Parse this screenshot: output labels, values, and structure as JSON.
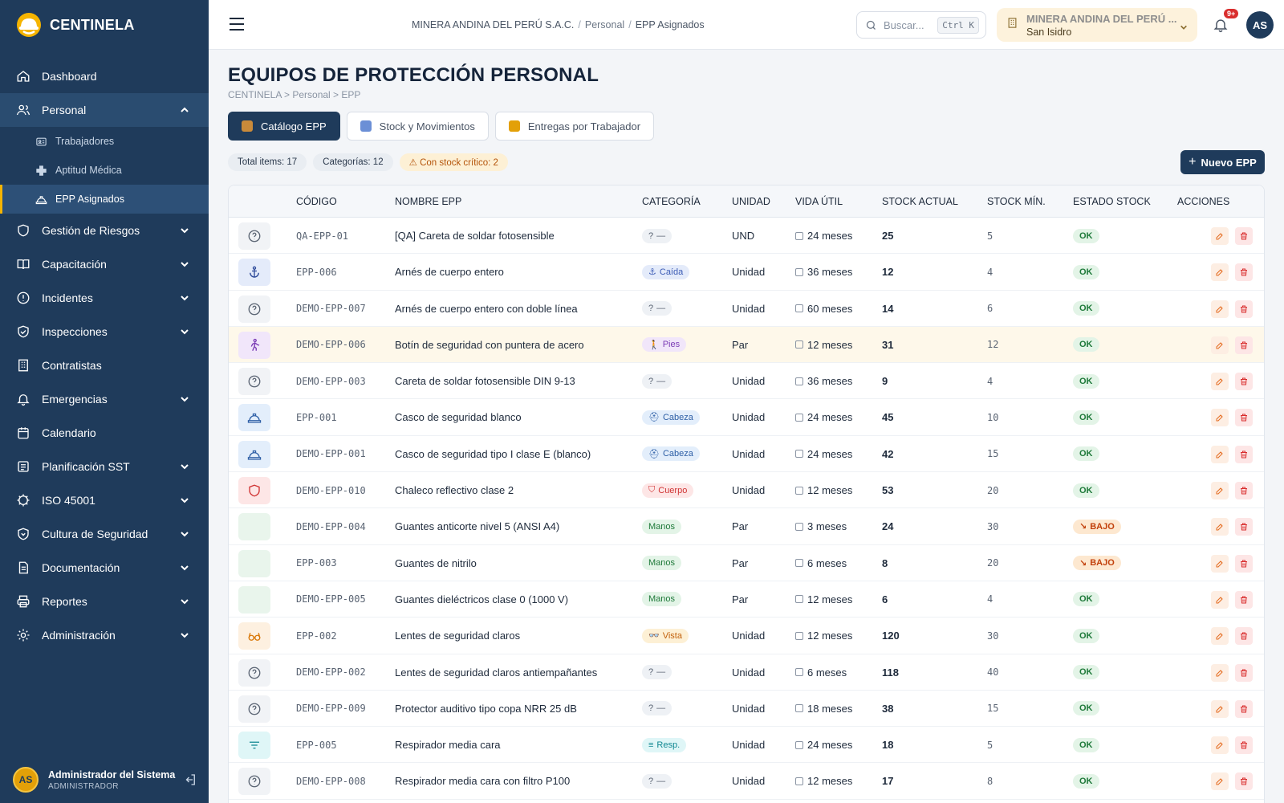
{
  "app": {
    "name": "CENTINELA"
  },
  "sidebar": {
    "items": [
      {
        "label": "Dashboard",
        "icon": "home-icon",
        "has_chevron": false
      },
      {
        "label": "Personal",
        "icon": "users-icon",
        "has_chevron": true,
        "open": true
      },
      {
        "label": "Gestión de Riesgos",
        "icon": "shield-icon",
        "has_chevron": true
      },
      {
        "label": "Capacitación",
        "icon": "book-icon",
        "has_chevron": true
      },
      {
        "label": "Incidentes",
        "icon": "alert-circle-icon",
        "has_chevron": true
      },
      {
        "label": "Inspecciones",
        "icon": "shield-check-icon",
        "has_chevron": true
      },
      {
        "label": "Contratistas",
        "icon": "building-icon",
        "has_chevron": false
      },
      {
        "label": "Emergencias",
        "icon": "bell-icon",
        "has_chevron": true
      },
      {
        "label": "Calendario",
        "icon": "calendar-icon",
        "has_chevron": false
      },
      {
        "label": "Planificación SST",
        "icon": "list-icon",
        "has_chevron": true
      },
      {
        "label": "ISO 45001",
        "icon": "badge-icon",
        "has_chevron": true
      },
      {
        "label": "Cultura de Seguridad",
        "icon": "shield-heart-icon",
        "has_chevron": true
      },
      {
        "label": "Documentación",
        "icon": "document-icon",
        "has_chevron": true
      },
      {
        "label": "Reportes",
        "icon": "printer-icon",
        "has_chevron": true
      },
      {
        "label": "Administración",
        "icon": "gear-icon",
        "has_chevron": true
      }
    ],
    "sub_items": [
      {
        "label": "Trabajadores",
        "icon": "id-card-icon"
      },
      {
        "label": "Aptitud Médica",
        "icon": "medical-cross-icon"
      },
      {
        "label": "EPP Asignados",
        "icon": "hardhat-icon",
        "active": true
      }
    ],
    "user": {
      "initials": "AS",
      "name": "Administrador del Sistema",
      "role": "ADMINISTRADOR"
    }
  },
  "topbar": {
    "breadcrumb": [
      "MINERA ANDINA DEL PERÚ S.A.C.",
      "Personal",
      "EPP Asignados"
    ],
    "search_placeholder": "Buscar...",
    "search_shortcut": "Ctrl K",
    "company_name": "MINERA ANDINA DEL PERÚ ...",
    "company_site": "San Isidro",
    "notifications_badge": "9+",
    "user_initials": "AS"
  },
  "page": {
    "title": "EQUIPOS DE PROTECCIÓN PERSONAL",
    "breadcrumb": "CENTINELA > Personal > EPP",
    "tabs": [
      {
        "label": "Catálogo EPP",
        "active": true,
        "icon_color": "#c98a3a"
      },
      {
        "label": "Stock y Movimientos",
        "active": false,
        "icon_color": "#6b8fd6"
      },
      {
        "label": "Entregas por Trabajador",
        "active": false,
        "icon_color": "#e3a008"
      }
    ],
    "chips": {
      "total": "Total items: 17",
      "categorias": "Categorías: 12",
      "critico": "⚠ Con stock crítico: 2"
    },
    "new_button": "Nuevo EPP"
  },
  "table": {
    "headers": [
      "CÓDIGO",
      "NOMBRE EPP",
      "CATEGORÍA",
      "UNIDAD",
      "VIDA ÚTIL",
      "STOCK ACTUAL",
      "STOCK MÍN.",
      "ESTADO STOCK",
      "ACCIONES"
    ],
    "rows": [
      {
        "icon": "help-circle-icon",
        "code": "QA-EPP-01",
        "name": "[QA] Careta de soldar fotosensible",
        "category": "—",
        "cat_icon": "?",
        "cat_style": "none",
        "unit": "UND",
        "life": "24 meses",
        "stock": "25",
        "min": "5",
        "status": "OK"
      },
      {
        "icon": "anchor-icon",
        "code": "EPP-006",
        "name": "Arnés de cuerpo entero",
        "category": "Caída",
        "cat_icon": "⚓",
        "cat_style": "caida",
        "unit": "Unidad",
        "life": "36 meses",
        "stock": "12",
        "min": "4",
        "status": "OK"
      },
      {
        "icon": "help-circle-icon",
        "code": "DEMO-EPP-007",
        "name": "Arnés de cuerpo entero con doble línea",
        "category": "—",
        "cat_icon": "?",
        "cat_style": "none",
        "unit": "Unidad",
        "life": "60 meses",
        "stock": "14",
        "min": "6",
        "status": "OK"
      },
      {
        "icon": "walking-icon",
        "code": "DEMO-EPP-006",
        "name": "Botín de seguridad con puntera de acero",
        "category": "Pies",
        "cat_icon": "🚶",
        "cat_style": "pies",
        "unit": "Par",
        "life": "12 meses",
        "stock": "31",
        "min": "12",
        "status": "OK",
        "highlight": true
      },
      {
        "icon": "help-circle-icon",
        "code": "DEMO-EPP-003",
        "name": "Careta de soldar fotosensible DIN 9-13",
        "category": "—",
        "cat_icon": "?",
        "cat_style": "none",
        "unit": "Unidad",
        "life": "36 meses",
        "stock": "9",
        "min": "4",
        "status": "OK"
      },
      {
        "icon": "hardhat-icon",
        "code": "EPP-001",
        "name": "Casco de seguridad blanco",
        "category": "Cabeza",
        "cat_icon": "⛑",
        "cat_style": "cabeza",
        "unit": "Unidad",
        "life": "24 meses",
        "stock": "45",
        "min": "10",
        "status": "OK"
      },
      {
        "icon": "hardhat-icon",
        "code": "DEMO-EPP-001",
        "name": "Casco de seguridad tipo I clase E (blanco)",
        "category": "Cabeza",
        "cat_icon": "⛑",
        "cat_style": "cabeza",
        "unit": "Unidad",
        "life": "24 meses",
        "stock": "42",
        "min": "15",
        "status": "OK"
      },
      {
        "icon": "shield-icon",
        "code": "DEMO-EPP-010",
        "name": "Chaleco reflectivo clase 2",
        "category": "Cuerpo",
        "cat_icon": "⛉",
        "cat_style": "cuerpo",
        "unit": "Unidad",
        "life": "12 meses",
        "stock": "53",
        "min": "20",
        "status": "OK"
      },
      {
        "icon": "glove-icon",
        "code": "DEMO-EPP-004",
        "name": "Guantes anticorte nivel 5 (ANSI A4)",
        "category": "Manos",
        "cat_icon": "",
        "cat_style": "manos",
        "unit": "Par",
        "life": "3 meses",
        "stock": "24",
        "min": "30",
        "status": "BAJO"
      },
      {
        "icon": "glove-icon",
        "code": "EPP-003",
        "name": "Guantes de nitrilo",
        "category": "Manos",
        "cat_icon": "",
        "cat_style": "manos",
        "unit": "Par",
        "life": "6 meses",
        "stock": "8",
        "min": "20",
        "status": "BAJO"
      },
      {
        "icon": "glove-icon",
        "code": "DEMO-EPP-005",
        "name": "Guantes dieléctricos clase 0 (1000 V)",
        "category": "Manos",
        "cat_icon": "",
        "cat_style": "manos",
        "unit": "Par",
        "life": "12 meses",
        "stock": "6",
        "min": "4",
        "status": "OK"
      },
      {
        "icon": "glasses-icon",
        "code": "EPP-002",
        "name": "Lentes de seguridad claros",
        "category": "Vista",
        "cat_icon": "👓",
        "cat_style": "vista",
        "unit": "Unidad",
        "life": "12 meses",
        "stock": "120",
        "min": "30",
        "status": "OK"
      },
      {
        "icon": "help-circle-icon",
        "code": "DEMO-EPP-002",
        "name": "Lentes de seguridad claros antiempañantes",
        "category": "—",
        "cat_icon": "?",
        "cat_style": "none",
        "unit": "Unidad",
        "life": "6 meses",
        "stock": "118",
        "min": "40",
        "status": "OK"
      },
      {
        "icon": "help-circle-icon",
        "code": "DEMO-EPP-009",
        "name": "Protector auditivo tipo copa NRR 25 dB",
        "category": "—",
        "cat_icon": "?",
        "cat_style": "none",
        "unit": "Unidad",
        "life": "18 meses",
        "stock": "38",
        "min": "15",
        "status": "OK"
      },
      {
        "icon": "filter-icon",
        "code": "EPP-005",
        "name": "Respirador media cara",
        "category": "Resp.",
        "cat_icon": "≡",
        "cat_style": "resp",
        "unit": "Unidad",
        "life": "24 meses",
        "stock": "18",
        "min": "5",
        "status": "OK"
      },
      {
        "icon": "help-circle-icon",
        "code": "DEMO-EPP-008",
        "name": "Respirador media cara con filtro P100",
        "category": "—",
        "cat_icon": "?",
        "cat_style": "none",
        "unit": "Unidad",
        "life": "12 meses",
        "stock": "17",
        "min": "8",
        "status": "OK"
      }
    ]
  },
  "colors": {
    "sidebar_bg": "#1f3b5b",
    "accent": "#f5b400",
    "ok": "#1f7a3a",
    "bajo": "#c2410c"
  }
}
